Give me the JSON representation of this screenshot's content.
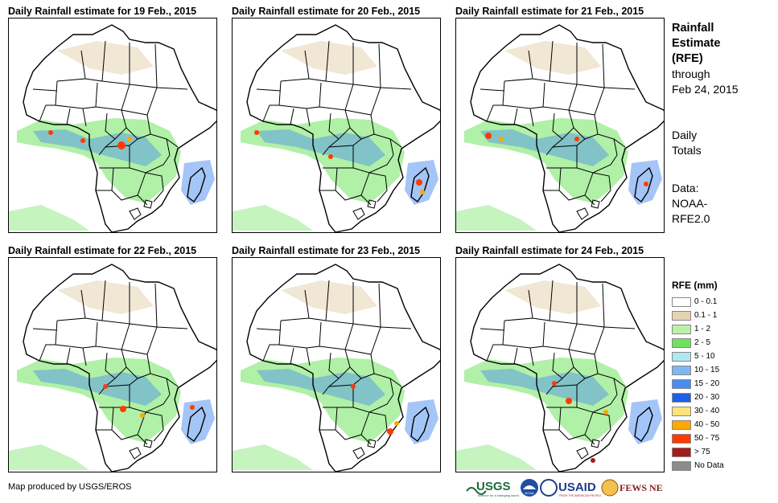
{
  "panels": [
    {
      "title": "Daily Rainfall estimate for 19 Feb., 2015"
    },
    {
      "title": "Daily Rainfall estimate for 20 Feb., 2015"
    },
    {
      "title": "Daily Rainfall estimate for 21 Feb., 2015"
    },
    {
      "title": "Daily Rainfall estimate for 22 Feb., 2015"
    },
    {
      "title": "Daily Rainfall estimate for 23 Feb., 2015"
    },
    {
      "title": "Daily Rainfall estimate for 24 Feb., 2015"
    }
  ],
  "sidebar": {
    "heading_1": "Rainfall",
    "heading_2": "Estimate",
    "heading_3": "(RFE)",
    "through": "through",
    "date": "Feb 24, 2015",
    "daily": "Daily",
    "totals": "Totals",
    "data_label": "Data:",
    "source_1": "NOAA-",
    "source_2": "RFE2.0"
  },
  "legend": {
    "title": "RFE (mm)",
    "items": [
      {
        "label": "0 - 0.1",
        "color": "#ffffff"
      },
      {
        "label": "0.1 - 1",
        "color": "#e6d3b3"
      },
      {
        "label": "1 - 2",
        "color": "#b9f2a6"
      },
      {
        "label": "2 - 5",
        "color": "#6fe35f"
      },
      {
        "label": "5 - 10",
        "color": "#b0e8f2"
      },
      {
        "label": "10 - 15",
        "color": "#7fb7f5"
      },
      {
        "label": "15 - 20",
        "color": "#4a8cf0"
      },
      {
        "label": "20 - 30",
        "color": "#1f5fe6"
      },
      {
        "label": "30 - 40",
        "color": "#ffe27a"
      },
      {
        "label": "40 - 50",
        "color": "#ffa600"
      },
      {
        "label": "50 - 75",
        "color": "#ff3b00"
      },
      {
        "label": "> 75",
        "color": "#a51c1c"
      },
      {
        "label": "No Data",
        "color": "#8c8c8c"
      }
    ]
  },
  "credit": "Map produced by USGS/EROS",
  "logos": {
    "usgs": "USGS",
    "usgs_tag": "science for a changing world",
    "noaa": "NOAA",
    "usaid": "USAID",
    "usaid_tag": "FROM THE AMERICAN PEOPLE",
    "fewsnet": "FEWS NET"
  }
}
